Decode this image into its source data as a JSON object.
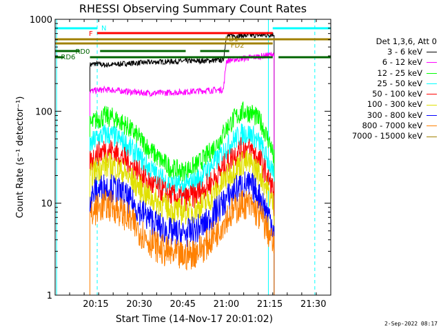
{
  "chart_data": {
    "type": "line",
    "title": "RHESSI Observing Summary Count Rates",
    "xlabel": "Start Time (14-Nov-17 20:01:02)",
    "ylabel": "Count Rate (s⁻¹ detector⁻¹)",
    "y_scale": "log",
    "ylim": [
      1,
      1000
    ],
    "xlim_minutes_after_start": [
      0,
      95
    ],
    "x_ticks": [
      "20:15",
      "20:30",
      "20:45",
      "21:00",
      "21:15",
      "21:30"
    ],
    "x_ticks_minutes_after_start": [
      14,
      29,
      44,
      59,
      74,
      89
    ],
    "y_ticks": [
      "1",
      "10",
      "100",
      "1000"
    ],
    "y_tick_values": [
      1,
      10,
      100,
      1000
    ],
    "grid": false,
    "legend_placement": "right",
    "legend_title": "Det 1,3,6, Att 0",
    "series": [
      {
        "name": "3 - 6 keV",
        "color": "#000000",
        "x": [
          12.0,
          14,
          17,
          20,
          24,
          28,
          32,
          36,
          40,
          44,
          48,
          52,
          56,
          58,
          59,
          60,
          63,
          66,
          69,
          72,
          74,
          75.5
        ],
        "values": [
          320,
          330,
          318,
          322,
          330,
          335,
          340,
          345,
          348,
          350,
          352,
          355,
          358,
          360,
          650,
          660,
          665,
          668,
          670,
          672,
          680,
          690
        ]
      },
      {
        "name": "6 - 12 keV",
        "color": "#ff00ff",
        "x": [
          12.0,
          14,
          17,
          20,
          24,
          28,
          32,
          36,
          40,
          44,
          48,
          52,
          56,
          58,
          59,
          60,
          63,
          66,
          69,
          72,
          74,
          75.5
        ],
        "values": [
          165,
          168,
          172,
          170,
          165,
          160,
          158,
          158,
          160,
          162,
          165,
          168,
          170,
          172,
          350,
          360,
          370,
          380,
          390,
          400,
          410,
          420
        ]
      },
      {
        "name": "12 - 25 keV",
        "color": "#00ff00",
        "x": [
          12.0,
          14,
          17,
          20,
          24,
          28,
          32,
          36,
          40,
          44,
          48,
          52,
          56,
          59,
          62,
          65,
          68,
          71,
          74,
          75.5
        ],
        "values": [
          70,
          80,
          88,
          85,
          72,
          55,
          40,
          30,
          24,
          22,
          25,
          32,
          45,
          65,
          85,
          100,
          95,
          75,
          45,
          30
        ]
      },
      {
        "name": "25 - 50 keV",
        "color": "#00ffff",
        "x": [
          12.0,
          14,
          17,
          20,
          24,
          28,
          32,
          36,
          40,
          44,
          48,
          52,
          56,
          59,
          62,
          65,
          68,
          71,
          74,
          75.5
        ],
        "values": [
          42,
          50,
          56,
          54,
          45,
          34,
          25,
          19,
          16,
          15,
          17,
          22,
          30,
          40,
          50,
          58,
          55,
          42,
          26,
          18
        ]
      },
      {
        "name": "50 - 100 keV",
        "color": "#ff0000",
        "x": [
          12.0,
          14,
          17,
          20,
          24,
          28,
          32,
          36,
          40,
          44,
          48,
          52,
          56,
          59,
          62,
          65,
          68,
          71,
          74,
          75.5
        ],
        "values": [
          28,
          33,
          38,
          37,
          30,
          23,
          17,
          14,
          12,
          11,
          12,
          15,
          20,
          27,
          34,
          40,
          37,
          28,
          17,
          13
        ]
      },
      {
        "name": "100 - 300 keV",
        "color": "#e0e000",
        "x": [
          12.0,
          14,
          17,
          20,
          24,
          28,
          32,
          36,
          40,
          44,
          48,
          52,
          56,
          59,
          62,
          65,
          68,
          71,
          74,
          75.5
        ],
        "values": [
          19,
          23,
          26,
          25,
          21,
          16,
          12,
          10,
          8.5,
          8,
          8.5,
          10,
          14,
          19,
          24,
          28,
          26,
          20,
          12,
          9
        ]
      },
      {
        "name": "300 - 800 keV",
        "color": "#0000ff",
        "x": [
          12.0,
          14,
          17,
          20,
          24,
          28,
          32,
          36,
          40,
          44,
          48,
          52,
          56,
          59,
          62,
          65,
          68,
          71,
          74,
          75.5
        ],
        "values": [
          11,
          13.5,
          15,
          14.5,
          12,
          9,
          7,
          5.5,
          4.8,
          4.6,
          5,
          6,
          8.5,
          11,
          14,
          16,
          15,
          11,
          7,
          5
        ]
      },
      {
        "name": "800 - 7000 keV",
        "color": "#ff8000",
        "x": [
          12.0,
          14,
          17,
          20,
          24,
          28,
          32,
          36,
          40,
          44,
          48,
          52,
          56,
          59,
          62,
          65,
          68,
          71,
          74,
          75.5
        ],
        "values": [
          7,
          8.5,
          9.5,
          9.2,
          7.5,
          5.5,
          4,
          3.2,
          2.8,
          2.6,
          2.9,
          3.5,
          5,
          7,
          8.5,
          10,
          9,
          7,
          4.5,
          3.2
        ]
      },
      {
        "name": "7000 - 15000 keV",
        "color": "#a08000",
        "x": [],
        "values": []
      }
    ],
    "annotations": {
      "flag_bars": [
        {
          "label": "N",
          "color": "#00ffff",
          "segments": [
            [
              0,
              14.5
            ],
            [
              75,
              95
            ]
          ]
        },
        {
          "label": "F",
          "color": "#ff0000",
          "segments": [
            [
              14.5,
              75
            ]
          ]
        },
        {
          "label": "FD1",
          "color": "#a08000",
          "segments": [
            [
              0,
              75
            ]
          ]
        },
        {
          "label": "FD2",
          "color": "#a08000",
          "segments": [
            [
              0,
              95
            ]
          ]
        },
        {
          "label": "RD0",
          "color": "#006400",
          "segments": [
            [
              0,
              8.5
            ],
            [
              15.5,
              45
            ],
            [
              50,
              60
            ]
          ]
        },
        {
          "label": "RD6",
          "color": "#006400",
          "segments": [
            [
              0,
              3
            ],
            [
              12,
              75
            ],
            [
              77,
              95
            ]
          ]
        }
      ],
      "vertical_lines": [
        {
          "x": 0.5,
          "color": "#00ffff",
          "style": "solid"
        },
        {
          "x": 14.5,
          "color": "#00ffff",
          "style": "dashed"
        },
        {
          "x": 73.5,
          "color": "#00ffff",
          "style": "solid"
        },
        {
          "x": 89.5,
          "color": "#00ffff",
          "style": "dashed"
        }
      ]
    }
  },
  "footer": {
    "date": "2-Sep-2022 08:17"
  }
}
